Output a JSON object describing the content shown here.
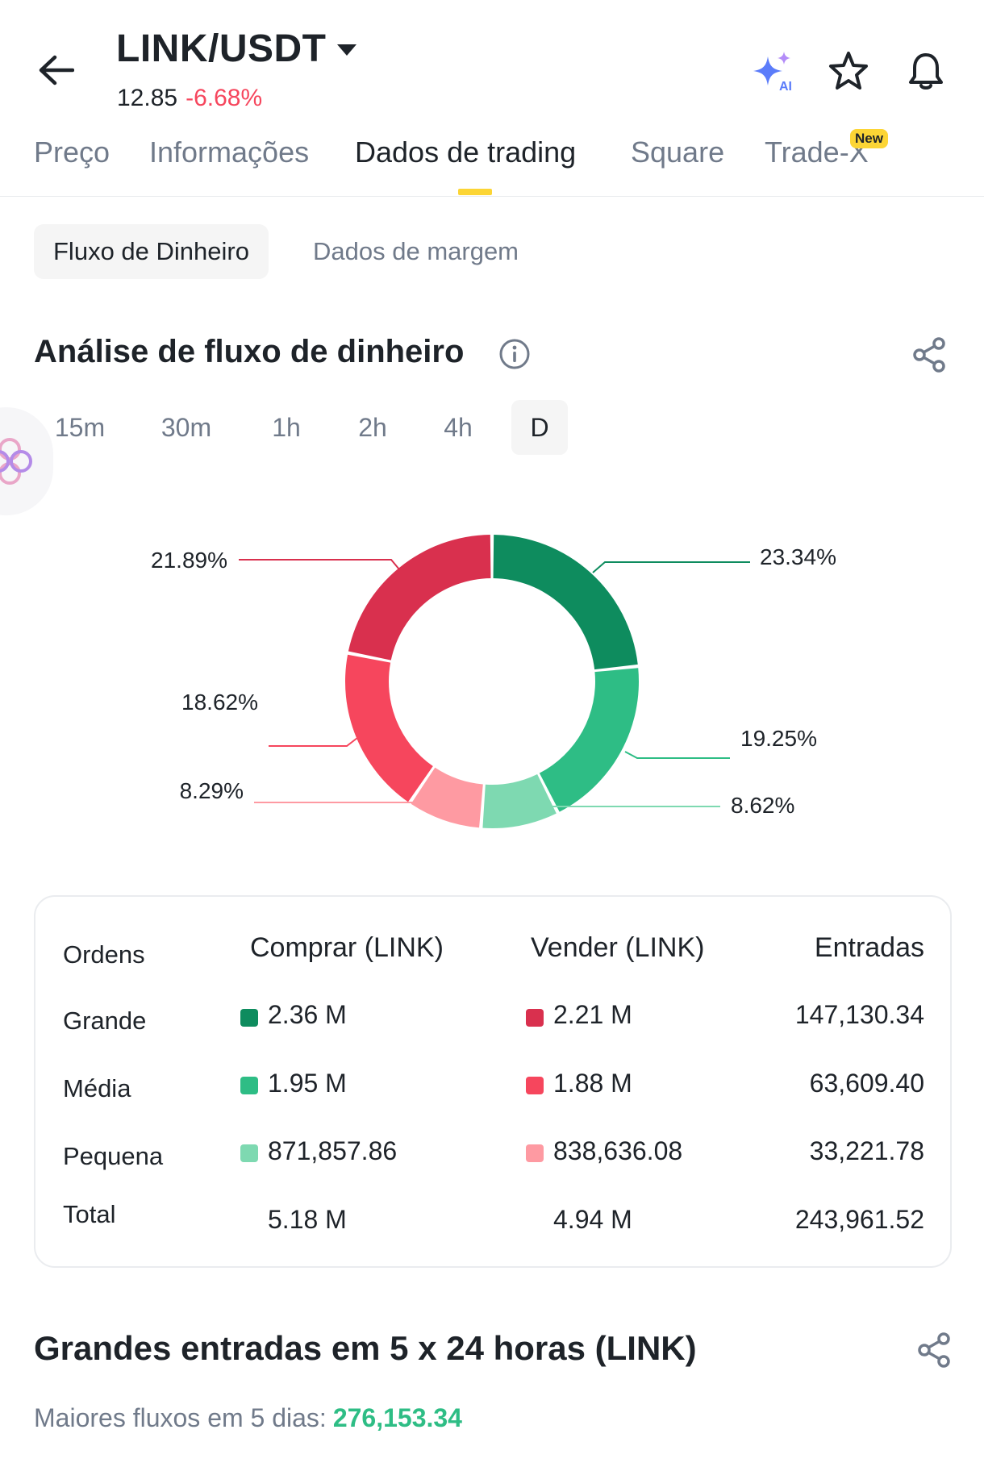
{
  "header": {
    "pair": "LINK/USDT",
    "price": "12.85",
    "change": "-6.68%",
    "ai_badge": "AI"
  },
  "tabs": [
    {
      "label": "Preço"
    },
    {
      "label": "Informações"
    },
    {
      "label": "Dados de trading"
    },
    {
      "label": "Square"
    },
    {
      "label": "Trade-X"
    }
  ],
  "active_tab": "Dados de trading",
  "new_badge": "New",
  "subtabs": [
    {
      "label": "Fluxo de Dinheiro"
    },
    {
      "label": "Dados de margem"
    }
  ],
  "section": {
    "title": "Análise de fluxo de dinheiro"
  },
  "intervals": [
    "15m",
    "30m",
    "1h",
    "2h",
    "4h",
    "D"
  ],
  "active_interval": "D",
  "chart_data": {
    "type": "pie",
    "slices": [
      {
        "label": "23.34%",
        "value": 23.34,
        "color": "#0e8c5e"
      },
      {
        "label": "19.25%",
        "value": 19.25,
        "color": "#2ebd85"
      },
      {
        "label": "8.62%",
        "value": 8.62,
        "color": "#7ed9b1"
      },
      {
        "label": "8.29%",
        "value": 8.29,
        "color": "#fe9aa2"
      },
      {
        "label": "18.62%",
        "value": 18.62,
        "color": "#f6465d"
      },
      {
        "label": "21.89%",
        "value": 21.89,
        "color": "#d9304e"
      }
    ]
  },
  "table": {
    "headers": {
      "orders": "Ordens",
      "buy": "Comprar (LINK)",
      "sell": "Vender (LINK)",
      "inflow": "Entradas"
    },
    "rows": [
      {
        "label": "Grande",
        "buy": "2.36 M",
        "sell": "2.21 M",
        "inflow": "147,130.34",
        "buy_color": "#0e8c5e",
        "sell_color": "#d9304e"
      },
      {
        "label": "Média",
        "buy": "1.95 M",
        "sell": "1.88 M",
        "inflow": "63,609.40",
        "buy_color": "#2ebd85",
        "sell_color": "#f6465d"
      },
      {
        "label": "Pequena",
        "buy": "871,857.86",
        "sell": "838,636.08",
        "inflow": "33,221.78",
        "buy_color": "#7ed9b1",
        "sell_color": "#fe9aa2"
      },
      {
        "label": "Total",
        "buy": "5.18 M",
        "sell": "4.94 M",
        "inflow": "243,961.52"
      }
    ]
  },
  "large_inflows": {
    "title": "Grandes entradas em 5 x 24 horas (LINK)",
    "summary_label": "Maiores fluxos em 5 dias:",
    "summary_value": "276,153.34"
  }
}
